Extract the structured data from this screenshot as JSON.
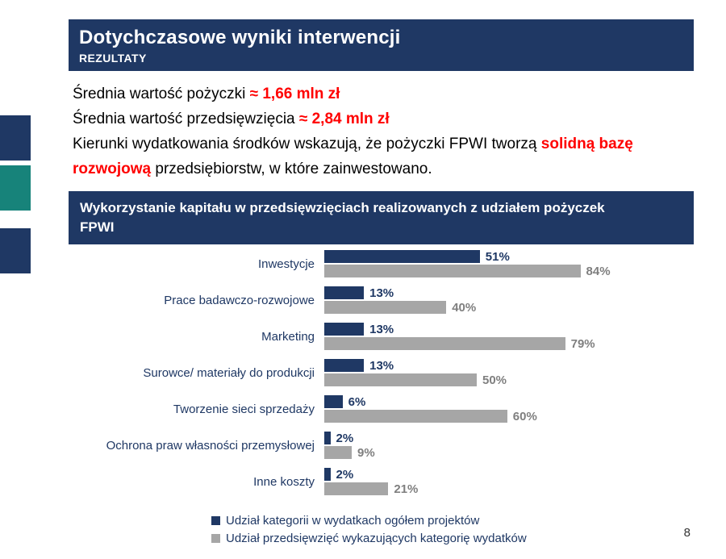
{
  "header": {
    "title": "Dotychczasowe wyniki interwencji",
    "subtitle": "REZULTATY"
  },
  "body": {
    "line1_prefix": "Średnia wartość pożyczki ",
    "line1_value": "≈ 1,66 mln zł",
    "line2_prefix": "Średnia wartość przedsięwzięcia ",
    "line2_value": "≈ 2,84 mln zł",
    "paragraph_part1": "Kierunki wydatkowania środków wskazują, że pożyczki FPWI tworzą ",
    "paragraph_highlight": "solidną bazę rozwojową",
    "paragraph_part2": " przedsiębiorstw, w które zainwestowano."
  },
  "chart_data": {
    "type": "bar",
    "orientation": "horizontal",
    "title": "Wykorzystanie kapitału w przedsięwzięciach realizowanych z udziałem pożyczek FPWI",
    "categories": [
      "Inwestycje",
      "Prace badawczo-rozwojowe",
      "Marketing",
      "Surowce/ materiały do produkcji",
      "Tworzenie sieci sprzedaży",
      "Ochrona praw własności przemysłowej",
      "Inne koszty"
    ],
    "series": [
      {
        "name": "Udział kategorii w wydatkach ogółem projektów",
        "color": "#1F3864",
        "values": [
          51,
          13,
          13,
          13,
          6,
          2,
          2
        ]
      },
      {
        "name": "Udział przedsięwzięć wykazujących kategorię wydatków",
        "color": "#A6A6A6",
        "values": [
          84,
          40,
          79,
          50,
          60,
          9,
          21
        ]
      }
    ],
    "xlim": [
      0,
      100
    ],
    "value_suffix": "%",
    "legend_position": "bottom",
    "grid": false
  },
  "colors": {
    "navy": "#1F3864",
    "teal": "#17837A",
    "red": "#FF0000",
    "gray_bar": "#A6A6A6",
    "gray_text": "#7F7F7F"
  },
  "footer": {
    "page_number": "8"
  }
}
